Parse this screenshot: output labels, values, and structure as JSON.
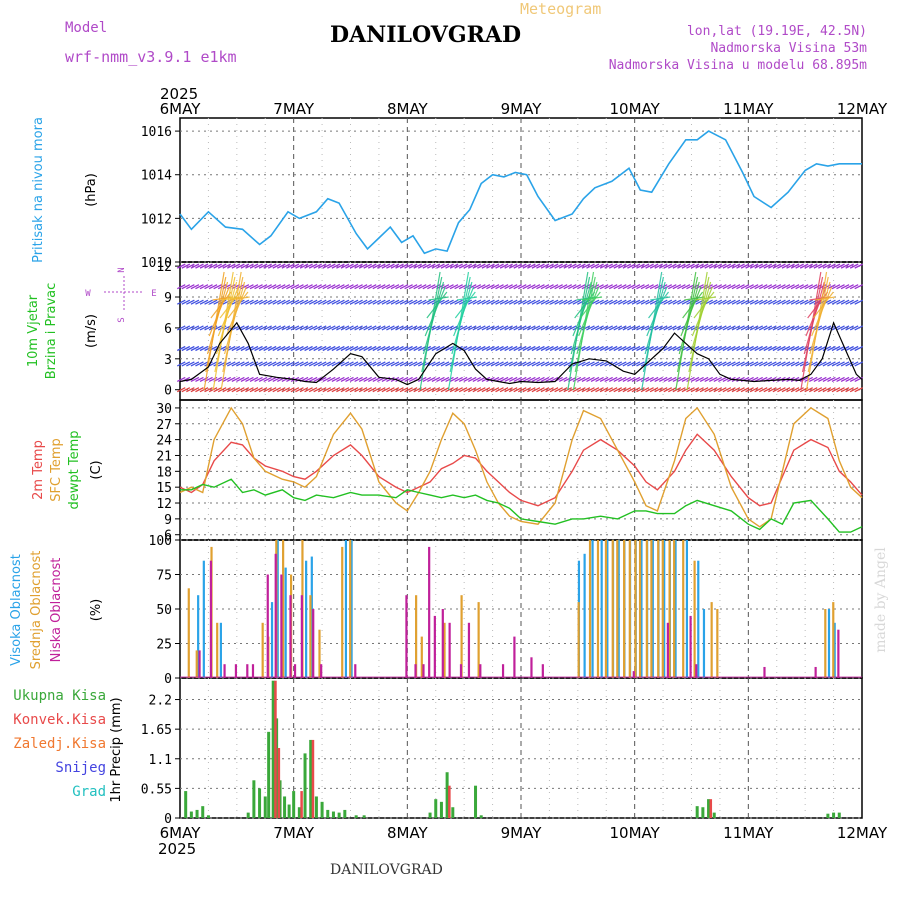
{
  "header": {
    "model_label": "Model",
    "model_name": "wrf-nmm_v3.9.1 e1km",
    "title": "DANILOVGRAD",
    "subtitle": "Meteogram",
    "lonlat": "lon,lat (19.19E, 42.5N)",
    "elevation": "Nadmorska Visina 53m",
    "model_elevation": "Nadmorska Visina u modelu 68.895m",
    "footer_title": "DANILOVGRAD",
    "watermark": "made by Angel"
  },
  "time_axis": {
    "year": "2025",
    "ticks": [
      "6MAY",
      "7MAY",
      "8MAY",
      "9MAY",
      "10MAY",
      "11MAY",
      "12MAY"
    ]
  },
  "colors": {
    "pressure": "#2aa3e8",
    "wind_speed": "#000000",
    "t2m": "#e84a4a",
    "sfc": "#e0a030",
    "dewpt": "#22c022",
    "high_cloud": "#2aa3e8",
    "mid_cloud": "#e0a030",
    "low_cloud": "#c0209a",
    "total_precip": "#3aa83a",
    "conv_precip": "#e84a4a",
    "frozen": "#f07830",
    "snow": "#4444e0",
    "hail": "#22c0c0",
    "purple_text": "#b04ac8",
    "grid": "#999999"
  },
  "chart_data": [
    {
      "type": "line",
      "panel": "pressure",
      "ylabel_lines": [
        "Pritisak na nivou mora"
      ],
      "unit": "(hPa)",
      "yticks": [
        "1010",
        "1012",
        "1014",
        "1016"
      ],
      "ylim": [
        1010,
        1016.6
      ],
      "grid": true,
      "series": [
        {
          "values_x_day": [
            0,
            0.1,
            0.25,
            0.4,
            0.55,
            0.7,
            0.8,
            0.95,
            1.05,
            1.2,
            1.3,
            1.4,
            1.55,
            1.65,
            1.75,
            1.85,
            1.95,
            2.05,
            2.15,
            2.25,
            2.35,
            2.45,
            2.55,
            2.65,
            2.75,
            2.85,
            2.95,
            3.05,
            3.15,
            3.3,
            3.45,
            3.55,
            3.65,
            3.8,
            3.95,
            4.05,
            4.15,
            4.3,
            4.45,
            4.55,
            4.65,
            4.8,
            4.95,
            5.05,
            5.2,
            5.35,
            5.5,
            5.6,
            5.7,
            5.8,
            5.9,
            6.0
          ],
          "values": [
            1012.2,
            1011.5,
            1012.3,
            1011.6,
            1011.5,
            1010.8,
            1011.2,
            1012.3,
            1012.0,
            1012.3,
            1012.9,
            1012.7,
            1011.3,
            1010.6,
            1011.1,
            1011.6,
            1010.9,
            1011.2,
            1010.4,
            1010.6,
            1010.5,
            1011.8,
            1012.4,
            1013.6,
            1014.0,
            1013.9,
            1014.1,
            1014.0,
            1013.0,
            1011.9,
            1012.2,
            1012.9,
            1013.4,
            1013.7,
            1014.3,
            1013.3,
            1013.2,
            1014.5,
            1015.6,
            1015.6,
            1016.0,
            1015.6,
            1014.1,
            1013.0,
            1012.5,
            1013.2,
            1014.2,
            1014.5,
            1014.4,
            1014.5,
            1014.5,
            1014.5
          ]
        }
      ]
    },
    {
      "type": "line",
      "panel": "wind",
      "ylabel_lines": [
        "10m Vjetar",
        "Brzina i Pravac"
      ],
      "unit": "(m/s)",
      "compass": [
        "N",
        "S",
        "W",
        "E"
      ],
      "yticks": [
        "0",
        "3",
        "6",
        "9",
        "12"
      ],
      "ylim": [
        -1,
        12.4
      ],
      "grid": true,
      "series": [
        {
          "name": "speed",
          "x_day": [
            0,
            0.1,
            0.25,
            0.35,
            0.5,
            0.6,
            0.7,
            0.85,
            1.0,
            1.1,
            1.2,
            1.35,
            1.5,
            1.6,
            1.75,
            1.9,
            2.0,
            2.1,
            2.25,
            2.4,
            2.5,
            2.6,
            2.7,
            2.8,
            2.9,
            3.0,
            3.15,
            3.3,
            3.45,
            3.6,
            3.75,
            3.9,
            4.0,
            4.1,
            4.25,
            4.35,
            4.45,
            4.55,
            4.65,
            4.75,
            4.85,
            4.95,
            5.05,
            5.2,
            5.35,
            5.45,
            5.55,
            5.65,
            5.75,
            5.85,
            5.95,
            6.0
          ],
          "values": [
            0.8,
            1.0,
            2.2,
            4.5,
            6.5,
            4.5,
            1.5,
            1.2,
            1.0,
            0.8,
            0.7,
            2.0,
            3.5,
            3.2,
            1.2,
            1.0,
            0.5,
            1.0,
            3.5,
            4.5,
            3.8,
            2.0,
            1.0,
            0.8,
            0.6,
            0.8,
            0.7,
            0.8,
            2.5,
            3.0,
            2.8,
            1.8,
            1.5,
            2.5,
            4.0,
            5.5,
            4.5,
            3.5,
            3.0,
            1.5,
            1.0,
            0.9,
            0.8,
            0.9,
            1.0,
            0.9,
            1.5,
            3.0,
            6.5,
            4.0,
            1.5,
            1.0
          ]
        }
      ]
    },
    {
      "type": "line",
      "panel": "temperature",
      "ylabel_lines": [
        "2m Temp",
        "SFC Temp",
        "dewpt Temp"
      ],
      "unit": "(C)",
      "yticks": [
        "6",
        "9",
        "12",
        "15",
        "18",
        "21",
        "24",
        "27",
        "30"
      ],
      "ylim": [
        5,
        31.5
      ],
      "grid": true,
      "series": [
        {
          "name": "2m Temp",
          "x_day": [
            0,
            0.1,
            0.2,
            0.3,
            0.45,
            0.55,
            0.65,
            0.75,
            0.9,
            1.0,
            1.1,
            1.2,
            1.35,
            1.5,
            1.6,
            1.75,
            1.9,
            2.0,
            2.1,
            2.2,
            2.3,
            2.4,
            2.5,
            2.6,
            2.7,
            2.8,
            2.9,
            3.0,
            3.15,
            3.3,
            3.45,
            3.55,
            3.7,
            3.85,
            4.0,
            4.1,
            4.2,
            4.35,
            4.45,
            4.55,
            4.7,
            4.85,
            5.0,
            5.1,
            5.2,
            5.3,
            5.4,
            5.55,
            5.7,
            5.8,
            5.9,
            6.0
          ],
          "values": [
            15,
            14,
            15.5,
            20,
            23.5,
            23,
            20.5,
            19,
            18,
            17,
            16.5,
            18,
            21,
            23,
            21,
            17,
            15,
            14,
            15,
            16,
            18.5,
            19.5,
            21,
            20.5,
            18,
            16,
            14,
            12.5,
            11.5,
            13,
            18,
            22,
            24,
            22,
            19,
            16,
            14.5,
            18,
            22,
            25,
            22,
            17,
            13,
            11.5,
            12,
            17,
            22,
            24,
            22.5,
            18,
            16,
            13.5
          ]
        },
        {
          "name": "SFC Temp",
          "x_day": [
            0,
            0.1,
            0.2,
            0.3,
            0.45,
            0.55,
            0.65,
            0.75,
            0.9,
            1.0,
            1.1,
            1.2,
            1.35,
            1.5,
            1.6,
            1.75,
            1.9,
            2.0,
            2.1,
            2.2,
            2.3,
            2.4,
            2.5,
            2.6,
            2.7,
            2.8,
            2.9,
            3.0,
            3.15,
            3.3,
            3.45,
            3.55,
            3.7,
            3.85,
            4.0,
            4.1,
            4.2,
            4.35,
            4.45,
            4.55,
            4.7,
            4.85,
            5.0,
            5.1,
            5.2,
            5.3,
            5.4,
            5.55,
            5.7,
            5.8,
            5.9,
            6.0
          ],
          "values": [
            14,
            15,
            14,
            24,
            30,
            27,
            20.5,
            18,
            16.5,
            16,
            15,
            17,
            25,
            29,
            26,
            16,
            12,
            10.5,
            14,
            18,
            24,
            29,
            27,
            22,
            16,
            12,
            9.5,
            8.5,
            8,
            12,
            24,
            29.5,
            28,
            22,
            16,
            11.5,
            10.5,
            20,
            28,
            30,
            25,
            15,
            9,
            7.5,
            9,
            18,
            27,
            30,
            28,
            20,
            15,
            13
          ]
        },
        {
          "name": "dewpt Temp",
          "x_day": [
            0,
            0.1,
            0.2,
            0.3,
            0.45,
            0.55,
            0.65,
            0.75,
            0.9,
            1.0,
            1.1,
            1.2,
            1.35,
            1.5,
            1.6,
            1.75,
            1.9,
            2.0,
            2.1,
            2.2,
            2.3,
            2.4,
            2.5,
            2.6,
            2.7,
            2.8,
            2.9,
            3.0,
            3.15,
            3.3,
            3.45,
            3.55,
            3.7,
            3.85,
            4.0,
            4.1,
            4.2,
            4.35,
            4.45,
            4.55,
            4.7,
            4.85,
            5.0,
            5.1,
            5.2,
            5.3,
            5.4,
            5.55,
            5.7,
            5.8,
            5.9,
            6.0
          ],
          "values": [
            14.5,
            14.5,
            15.5,
            15,
            16.5,
            14,
            14.5,
            13.5,
            14.5,
            13,
            12.5,
            13.5,
            13,
            14,
            13.5,
            13.5,
            13,
            14.5,
            14,
            13.5,
            13,
            13.5,
            13,
            13.5,
            12.5,
            12,
            11,
            9,
            8.5,
            8,
            9,
            9,
            9.5,
            9,
            10.5,
            10.5,
            10,
            10,
            11.5,
            12.5,
            11.5,
            10.5,
            8,
            7,
            9,
            8,
            12,
            12.5,
            9,
            6.5,
            6.5,
            7.5
          ]
        }
      ]
    },
    {
      "type": "bar",
      "panel": "clouds",
      "ylabel_lines": [
        "Visoka Oblacnost",
        "Srednja Oblacnost",
        "Niska Oblacnost"
      ],
      "unit": "(%)",
      "yticks": [
        "0",
        "25",
        "50",
        "75",
        "100"
      ],
      "ylim": [
        0,
        100
      ],
      "grid": true,
      "series": [
        {
          "name": "Visoka Oblacnost",
          "x_day": [
            0.15,
            0.2,
            0.35,
            0.8,
            0.85,
            0.92,
            1.1,
            1.15,
            1.45,
            1.5,
            3.5,
            3.55,
            3.62,
            3.7,
            3.75,
            3.8,
            3.85,
            3.9,
            3.95,
            4.0,
            4.05,
            4.1,
            4.15,
            4.2,
            4.25,
            4.3,
            4.35,
            4.45,
            4.55,
            4.6,
            5.7,
            5.75
          ],
          "values": [
            60,
            85,
            40,
            55,
            100,
            80,
            85,
            88,
            100,
            100,
            85,
            90,
            100,
            100,
            100,
            100,
            100,
            100,
            100,
            100,
            100,
            100,
            100,
            100,
            100,
            100,
            100,
            100,
            85,
            50,
            50,
            40
          ]
        },
        {
          "name": "Srednja Oblacnost",
          "x_day": [
            0.05,
            0.12,
            0.25,
            0.3,
            0.7,
            0.75,
            0.82,
            0.88,
            0.95,
            1.05,
            1.12,
            1.2,
            1.4,
            1.47,
            2.05,
            2.1,
            2.3,
            2.45,
            2.6,
            3.48,
            3.58,
            3.65,
            3.72,
            3.78,
            3.82,
            3.88,
            3.93,
            3.98,
            4.02,
            4.08,
            4.12,
            4.18,
            4.22,
            4.28,
            4.32,
            4.4,
            4.5,
            4.65,
            4.7,
            5.65,
            5.72
          ],
          "values": [
            65,
            20,
            95,
            40,
            40,
            30,
            100,
            100,
            75,
            100,
            60,
            35,
            95,
            100,
            60,
            30,
            40,
            60,
            55,
            55,
            100,
            100,
            100,
            100,
            100,
            100,
            100,
            100,
            100,
            100,
            100,
            100,
            100,
            100,
            100,
            100,
            85,
            55,
            50,
            50,
            55
          ]
        },
        {
          "name": "Niska Oblacnost",
          "x_day": [
            0.18,
            0.28,
            0.4,
            0.5,
            0.6,
            0.65,
            0.78,
            0.85,
            0.9,
            0.98,
            1.02,
            1.08,
            1.18,
            1.25,
            1.55,
            2.0,
            2.08,
            2.15,
            2.2,
            2.25,
            2.32,
            2.38,
            2.48,
            2.55,
            2.65,
            2.85,
            2.95,
            3.1,
            3.2,
            4.0,
            4.3,
            4.5,
            4.55,
            5.15,
            5.6,
            5.8
          ],
          "values": [
            20,
            85,
            10,
            10,
            10,
            10,
            75,
            90,
            75,
            60,
            10,
            60,
            50,
            10,
            10,
            60,
            10,
            10,
            95,
            45,
            50,
            40,
            10,
            40,
            10,
            10,
            30,
            15,
            10,
            5,
            40,
            45,
            10,
            8,
            8,
            35
          ]
        }
      ]
    },
    {
      "type": "bar",
      "panel": "precip",
      "ylabel_lines": [
        "1hr Precip (mm)"
      ],
      "legend": [
        "Ukupna Kisa",
        "Konvek.Kisa",
        "Zaledj.Kisa",
        "Snijeg",
        "Grad"
      ],
      "yticks": [
        "0",
        "0.55",
        "1.1",
        "1.65",
        "2.2"
      ],
      "ylim": [
        0,
        2.6
      ],
      "grid": true,
      "series": [
        {
          "name": "Ukupna Kisa",
          "x_day": [
            0.05,
            0.1,
            0.15,
            0.2,
            0.25,
            0.6,
            0.65,
            0.7,
            0.75,
            0.78,
            0.82,
            0.85,
            0.88,
            0.92,
            0.96,
            1.0,
            1.05,
            1.1,
            1.15,
            1.2,
            1.25,
            1.3,
            1.35,
            1.4,
            1.45,
            1.55,
            1.62,
            2.2,
            2.25,
            2.3,
            2.35,
            2.4,
            2.6,
            2.65,
            4.55,
            4.6,
            4.65,
            4.7,
            5.7,
            5.75,
            5.8
          ],
          "values": [
            0.5,
            0.12,
            0.15,
            0.22,
            0.05,
            0.1,
            0.7,
            0.55,
            0.4,
            1.6,
            2.55,
            1.85,
            0.7,
            0.4,
            0.25,
            0.5,
            0.2,
            1.2,
            1.45,
            0.4,
            0.3,
            0.15,
            0.12,
            0.1,
            0.15,
            0.05,
            0.05,
            0.1,
            0.35,
            0.3,
            0.85,
            0.2,
            0.6,
            0.05,
            0.22,
            0.2,
            0.35,
            0.1,
            0.08,
            0.1,
            0.1
          ]
        },
        {
          "name": "Konvek.Kisa",
          "x_day": [
            0.82,
            0.85,
            1.05,
            1.15,
            2.35,
            4.65
          ],
          "values": [
            2.55,
            1.3,
            0.5,
            1.45,
            0.6,
            0.35
          ]
        }
      ]
    }
  ]
}
